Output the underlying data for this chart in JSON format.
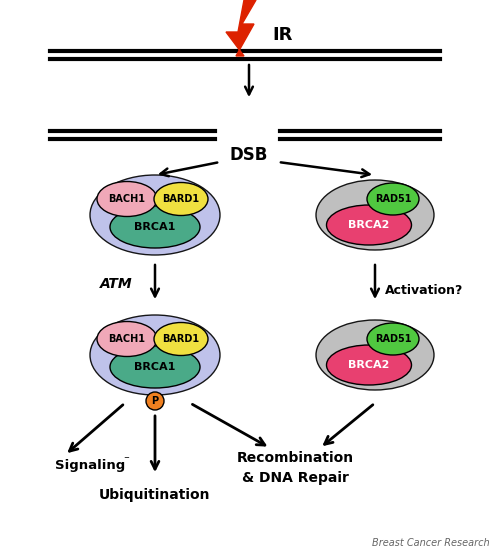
{
  "bg_color": "#ffffff",
  "ir_text": "IR",
  "dsb_text": "DSB",
  "atm_text": "ATM",
  "activation_text": "Activation?",
  "signaling_text": "Signaling",
  "ubiquitination_text": "Ubiquitination",
  "recombination_text": "Recombination\n& DNA Repair",
  "footer_text": "Breast Cancer Research",
  "colors": {
    "brca1": "#4aaa88",
    "bach1": "#f0a8b8",
    "bard1": "#f0e040",
    "brca2": "#e84070",
    "rad51": "#50c840",
    "surround_left": "#b8bce8",
    "surround_right": "#b8b8b8",
    "phospho": "#f08020",
    "lightning_body": "#dd2200",
    "arrow": "#000000"
  }
}
